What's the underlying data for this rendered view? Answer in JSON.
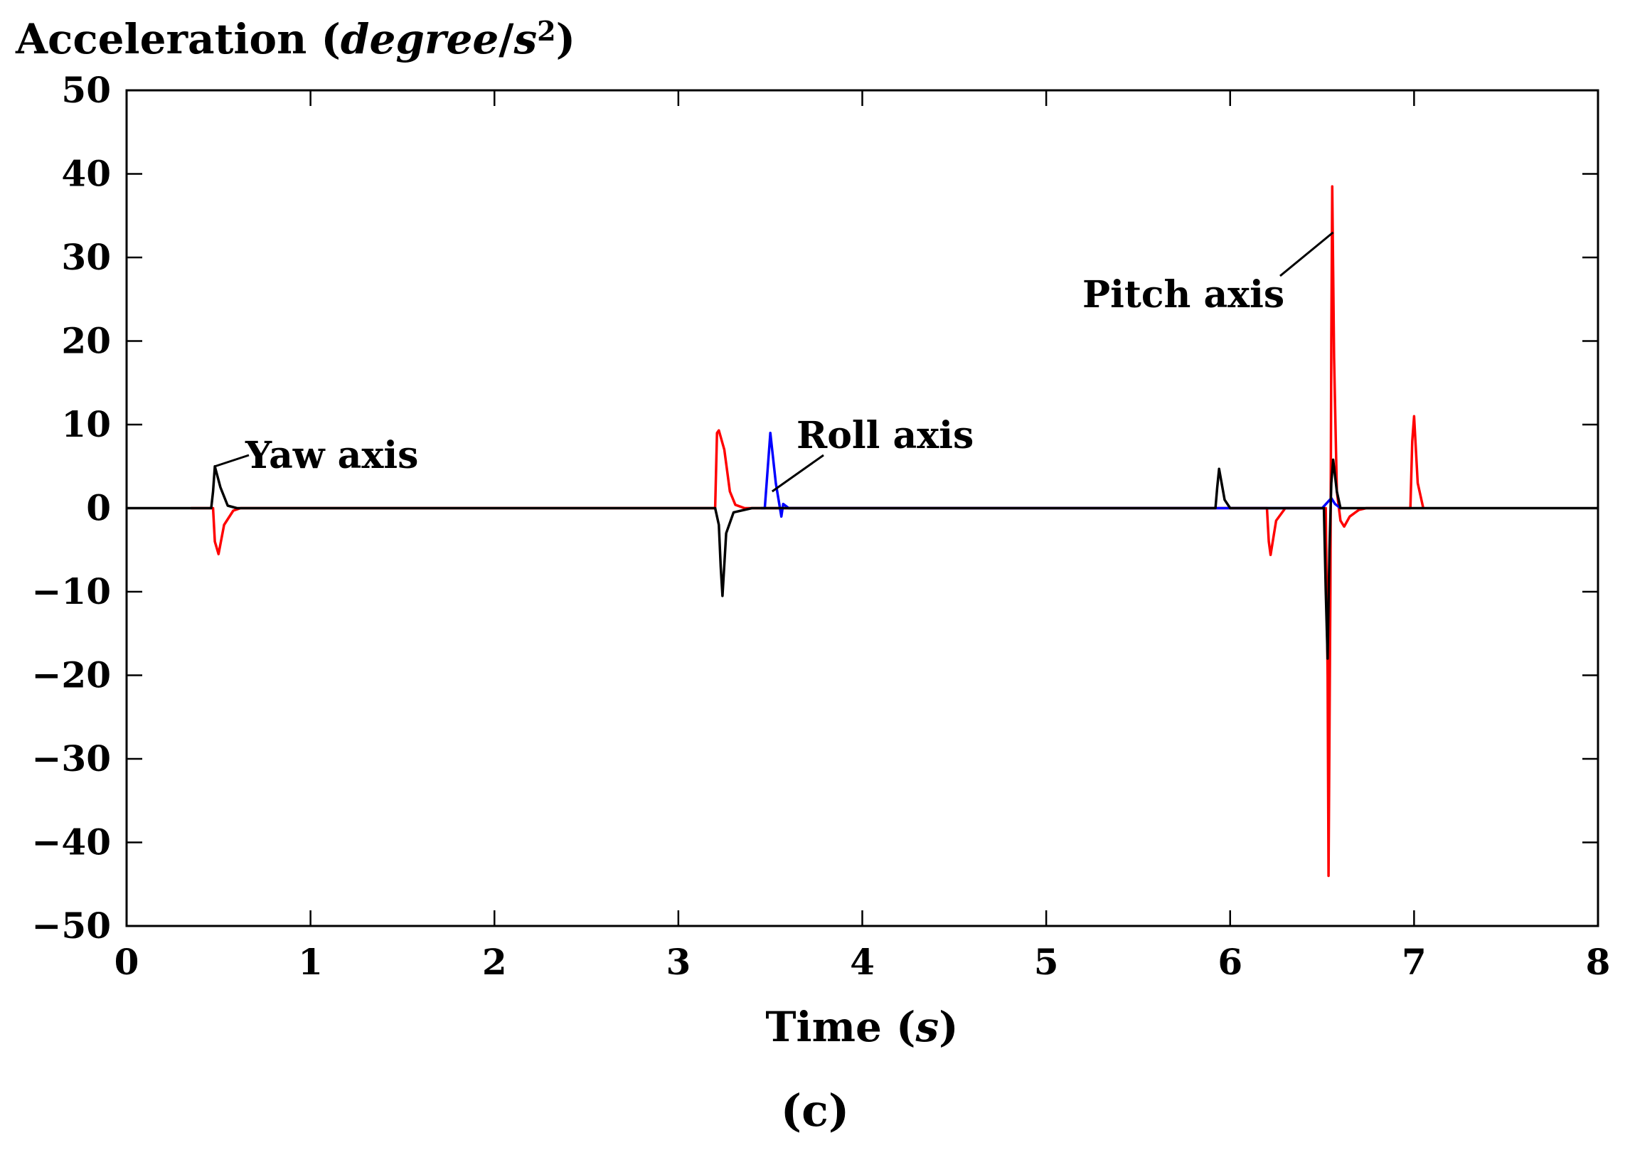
{
  "chart_data": {
    "type": "line",
    "title": "",
    "ylabel_parts": [
      "Acceleration (",
      "degree",
      "/",
      "s",
      "2",
      ")"
    ],
    "xlabel_parts": [
      "Time (",
      "s",
      ")"
    ],
    "caption": "(c)",
    "xlim": [
      0,
      8
    ],
    "ylim": [
      -50,
      50
    ],
    "x_ticks": [
      0,
      1,
      2,
      3,
      4,
      5,
      6,
      7,
      8
    ],
    "x_tick_labels": [
      "0",
      "1",
      "2",
      "3",
      "4",
      "5",
      "6",
      "7",
      "8"
    ],
    "y_ticks": [
      50,
      40,
      30,
      20,
      10,
      0,
      -10,
      -20,
      -30,
      -40,
      -50
    ],
    "y_tick_labels": [
      "50",
      "40",
      "30",
      "20",
      "10",
      "0",
      "−10",
      "−20",
      "−30",
      "−40",
      "−50"
    ],
    "grid": false,
    "series": [
      {
        "name": "Pitch axis",
        "color": "#ff0000",
        "x": [
          0.35,
          0.47,
          0.48,
          0.5,
          0.53,
          0.58,
          0.62,
          3.2,
          3.21,
          3.22,
          3.25,
          3.28,
          3.31,
          3.36,
          6.2,
          6.21,
          6.22,
          6.25,
          6.3,
          6.52,
          6.53,
          6.535,
          6.545,
          6.55,
          6.555,
          6.565,
          6.58,
          6.6,
          6.62,
          6.65,
          6.7,
          6.74,
          6.98,
          6.99,
          7.0,
          7.02,
          7.05
        ],
        "y": [
          0,
          0,
          -4,
          -5.5,
          -2,
          -0.3,
          0,
          0,
          9,
          9.3,
          7,
          2,
          0.4,
          0,
          0,
          -4,
          -5.6,
          -1.5,
          0,
          0,
          -20,
          -44,
          -10,
          20,
          38.5,
          18,
          2,
          -1.5,
          -2.2,
          -1,
          -0.2,
          0,
          0,
          8,
          11,
          3,
          0
        ]
      },
      {
        "name": "Roll axis",
        "color": "#0000ff",
        "x": [
          3.45,
          3.47,
          3.48,
          3.5,
          3.53,
          3.56,
          3.57,
          3.6,
          3.65,
          6.5,
          6.55,
          6.57,
          6.6
        ],
        "y": [
          0,
          0,
          3,
          9,
          3,
          -1,
          0.5,
          0,
          0,
          0,
          1.2,
          0.5,
          0
        ]
      },
      {
        "name": "Yaw axis",
        "color": "#000000",
        "x": [
          0,
          0.46,
          0.47,
          0.48,
          0.51,
          0.55,
          0.6,
          3.2,
          3.22,
          3.23,
          3.24,
          3.26,
          3.3,
          3.4,
          5.92,
          5.93,
          5.94,
          5.97,
          6.0,
          6.51,
          6.52,
          6.53,
          6.54,
          6.55,
          6.56,
          6.58,
          6.6,
          8
        ],
        "y": [
          0,
          0,
          2,
          5,
          2.5,
          0.3,
          0,
          0,
          -2,
          -7,
          -10.5,
          -3,
          -0.5,
          0,
          0,
          2.5,
          4.7,
          1,
          0,
          0,
          -10,
          -18,
          -5,
          3,
          5.8,
          2,
          0,
          0
        ]
      }
    ],
    "annotations": [
      {
        "text": "Yaw axis",
        "target_x": 0.48,
        "target_y": 5
      },
      {
        "text": "Roll axis",
        "target_x": 3.51,
        "target_y": 2
      },
      {
        "text": "Pitch axis",
        "target_x": 6.56,
        "target_y": 33
      }
    ]
  }
}
